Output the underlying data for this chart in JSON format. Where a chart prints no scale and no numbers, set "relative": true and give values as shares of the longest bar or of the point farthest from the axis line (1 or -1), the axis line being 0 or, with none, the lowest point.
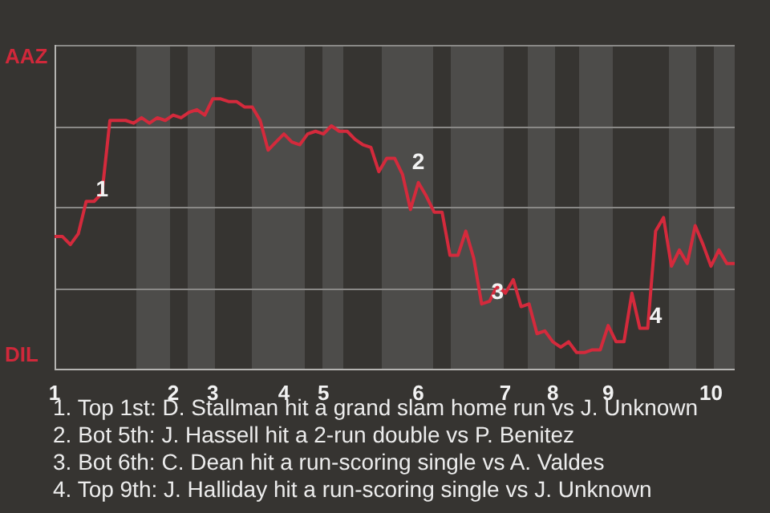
{
  "chart_data": {
    "type": "line",
    "color": "#d42a3c",
    "marker": "none",
    "line_style": "solid",
    "grid": "y",
    "relative": true,
    "categories": [
      "1",
      null,
      null,
      null,
      null,
      null,
      null,
      null,
      null,
      null,
      null,
      null,
      null,
      null,
      null,
      "2",
      null,
      null,
      null,
      null,
      "3",
      null,
      null,
      null,
      null,
      null,
      null,
      null,
      null,
      "4",
      null,
      null,
      null,
      null,
      "5",
      null,
      null,
      null,
      null,
      null,
      null,
      null,
      null,
      null,
      null,
      null,
      "6",
      null,
      null,
      null,
      null,
      null,
      null,
      null,
      null,
      null,
      null,
      "7",
      null,
      null,
      null,
      null,
      null,
      "8",
      null,
      null,
      null,
      null,
      null,
      null,
      "9",
      null,
      null,
      null,
      null,
      null,
      null,
      null,
      null,
      null,
      null,
      null,
      null,
      "10",
      null,
      null,
      null
    ],
    "values": [
      0.49,
      0.49,
      0.46,
      0.5,
      0.62,
      0.62,
      0.65,
      0.92,
      0.92,
      0.92,
      0.91,
      0.93,
      0.91,
      0.93,
      0.92,
      0.94,
      0.93,
      0.95,
      0.96,
      0.94,
      1,
      1,
      0.99,
      0.99,
      0.97,
      0.97,
      0.92,
      0.81,
      0.84,
      0.87,
      0.84,
      0.83,
      0.87,
      0.88,
      0.87,
      0.9,
      0.88,
      0.88,
      0.85,
      0.83,
      0.82,
      0.73,
      0.78,
      0.78,
      0.72,
      0.59,
      0.69,
      0.64,
      0.58,
      0.58,
      0.42,
      0.42,
      0.51,
      0.41,
      0.24,
      0.25,
      0.31,
      0.28,
      0.33,
      0.23,
      0.24,
      0.13,
      0.14,
      0.1,
      0.08,
      0.1,
      0.06,
      0.06,
      0.07,
      0.07,
      0.16,
      0.1,
      0.1,
      0.28,
      0.15,
      0.15,
      0.51,
      0.56,
      0.38,
      0.44,
      0.39,
      0.53,
      0.46,
      0.38,
      0.44,
      0.39,
      0.39
    ],
    "annotations": [
      "AAZ",
      "DIL",
      {
        "text": "1",
        "y": 0.62
      },
      {
        "text": "2",
        "y": 0.72
      },
      {
        "text": "3",
        "y": 0.24
      },
      {
        "text": "4",
        "y": 0.15
      },
      "1. Top 1st: D. Stallman hit a grand slam home run vs J. Unknown",
      "2. Bot 5th: J. Hassell hit a 2-run double vs P. Benitez",
      "3. Bot 6th: C. Dean hit a run-scoring single vs A. Valdes",
      "4. Top 9th: J. Halliday hit a run-scoring single vs J. Unknown"
    ]
  }
}
